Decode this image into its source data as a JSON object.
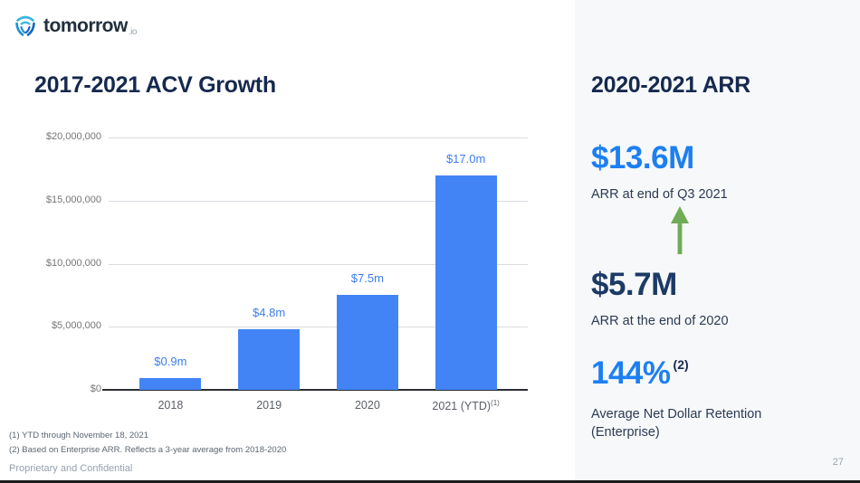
{
  "logo": {
    "brand": "tomorrow",
    "tld": ".io"
  },
  "left": {
    "title": "2017-2021 ACV Growth",
    "footnotes": [
      "(1) YTD through November 18, 2021",
      "(2) Based on Enterprise ARR. Reflects a 3-year average from 2018-2020"
    ],
    "footer": "Proprietary and Confidential"
  },
  "chart_data": {
    "type": "bar",
    "title": "2017-2021 ACV Growth",
    "categories": [
      "2018",
      "2019",
      "2020",
      "2021 (YTD)"
    ],
    "category_superscripts": [
      "",
      "",
      "",
      "(1)"
    ],
    "values": [
      900000,
      4800000,
      7500000,
      17000000
    ],
    "bar_labels": [
      "$0.9m",
      "$4.8m",
      "$7.5m",
      "$17.0m"
    ],
    "xlabel": "",
    "ylabel": "",
    "ylim": [
      0,
      20000000
    ],
    "yticks": [
      0,
      5000000,
      10000000,
      15000000,
      20000000
    ],
    "ytick_labels": [
      "$0",
      "$5,000,000",
      "$10,000,000",
      "$15,000,000",
      "$20,000,000"
    ],
    "grid": true,
    "legend": false,
    "bar_color": "#4284f5",
    "bar_label_color": "#3d7dee"
  },
  "right": {
    "title": "2020-2021 ARR",
    "metrics": [
      {
        "value": "$13.6M",
        "superscript": "",
        "caption": "ARR at end of Q3 2021",
        "style": "blue"
      },
      {
        "value": "$5.7M",
        "superscript": "",
        "caption": "ARR at the end of 2020",
        "style": "navy"
      },
      {
        "value": "144%",
        "superscript": "(2)",
        "caption": "Average Net Dollar Retention (Enterprise)",
        "style": "blue"
      }
    ],
    "page_number": "27"
  },
  "colors": {
    "bar_blue": "#4284f5",
    "bright_blue": "#1c7ff2",
    "navy_title": "#16294e",
    "green_arrow": "#6fac55",
    "panel_background": "#f7f8fa",
    "gridline": "#d8dce0"
  }
}
